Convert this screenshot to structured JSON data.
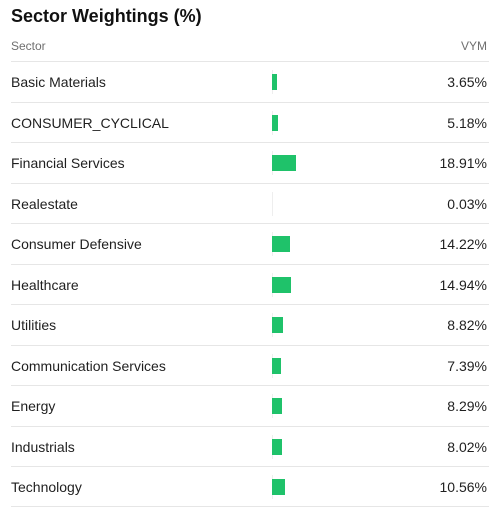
{
  "title": "Sector Weightings (%)",
  "header": {
    "sector_label": "Sector",
    "fund_label": "VYM"
  },
  "colors": {
    "bar": "#1fc26a"
  },
  "rows": [
    {
      "sector": "Basic Materials",
      "value_text": "3.65%",
      "value": 3.65
    },
    {
      "sector": "CONSUMER_CYCLICAL",
      "value_text": "5.18%",
      "value": 5.18
    },
    {
      "sector": "Financial Services",
      "value_text": "18.91%",
      "value": 18.91
    },
    {
      "sector": "Realestate",
      "value_text": "0.03%",
      "value": 0.03
    },
    {
      "sector": "Consumer Defensive",
      "value_text": "14.22%",
      "value": 14.22
    },
    {
      "sector": "Healthcare",
      "value_text": "14.94%",
      "value": 14.94
    },
    {
      "sector": "Utilities",
      "value_text": "8.82%",
      "value": 8.82
    },
    {
      "sector": "Communication Services",
      "value_text": "7.39%",
      "value": 7.39
    },
    {
      "sector": "Energy",
      "value_text": "8.29%",
      "value": 8.29
    },
    {
      "sector": "Industrials",
      "value_text": "8.02%",
      "value": 8.02
    },
    {
      "sector": "Technology",
      "value_text": "10.56%",
      "value": 10.56
    }
  ]
}
